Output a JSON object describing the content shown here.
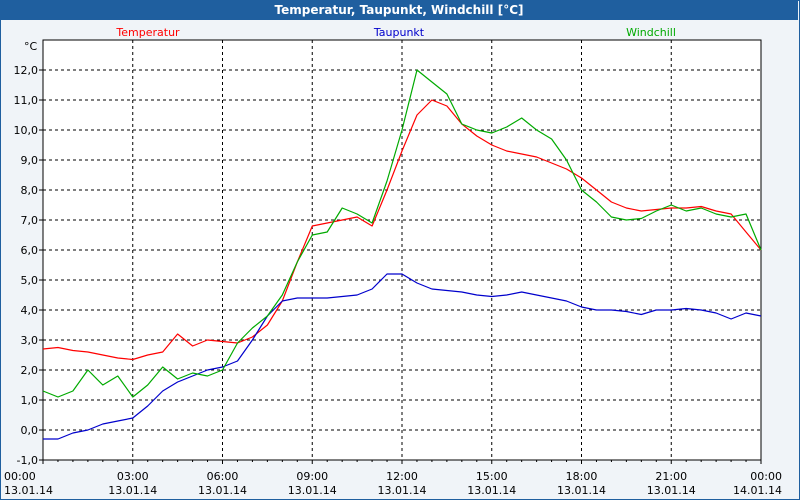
{
  "window": {
    "title": "Temperatur, Taupunkt, Windchill [°C]"
  },
  "colors": {
    "temperatur": "#ff0000",
    "taupunkt": "#0000cc",
    "windchill": "#00aa00",
    "titlebar": "#1f5f9f",
    "grid": "#000000",
    "background": "#ffffff"
  },
  "chart_data": {
    "type": "line",
    "title": "Temperatur, Taupunkt, Windchill [°C]",
    "ylabel": "°C",
    "xlabel": "",
    "xlim": [
      "13.01.14 00:00",
      "14.01.14 00:00"
    ],
    "ylim": [
      -1.0,
      13.0
    ],
    "grid": true,
    "legend_position": "top",
    "yticks": [
      "12,0",
      "11,0",
      "10,0",
      "9,0",
      "8,0",
      "7,0",
      "6,0",
      "5,0",
      "4,0",
      "3,0",
      "2,0",
      "1,0",
      "0,0",
      "-1,0"
    ],
    "xticks": [
      {
        "time": "00:00",
        "date": "13.01.14"
      },
      {
        "time": "03:00",
        "date": "13.01.14"
      },
      {
        "time": "06:00",
        "date": "13.01.14"
      },
      {
        "time": "09:00",
        "date": "13.01.14"
      },
      {
        "time": "12:00",
        "date": "13.01.14"
      },
      {
        "time": "15:00",
        "date": "13.01.14"
      },
      {
        "time": "18:00",
        "date": "13.01.14"
      },
      {
        "time": "21:00",
        "date": "13.01.14"
      },
      {
        "time": "00:00",
        "date": "14.01.14"
      }
    ],
    "x_hours": [
      0,
      0.5,
      1,
      1.5,
      2,
      2.5,
      3,
      3.5,
      4,
      4.5,
      5,
      5.5,
      6,
      6.5,
      7,
      7.5,
      8,
      8.5,
      9,
      9.5,
      10,
      10.5,
      11,
      11.5,
      12,
      12.5,
      13,
      13.5,
      14,
      14.5,
      15,
      15.5,
      16,
      16.5,
      17,
      17.5,
      18,
      18.5,
      19,
      19.5,
      20,
      20.5,
      21,
      21.5,
      22,
      22.5,
      23,
      23.5,
      24
    ],
    "series": [
      {
        "name": "Temperatur",
        "color": "#ff0000",
        "values": [
          2.7,
          2.75,
          2.65,
          2.6,
          2.5,
          2.4,
          2.35,
          2.5,
          2.6,
          3.2,
          2.8,
          3.0,
          2.95,
          2.9,
          3.1,
          3.5,
          4.3,
          5.6,
          6.8,
          6.9,
          7.0,
          7.1,
          6.8,
          8.0,
          9.3,
          10.5,
          11.0,
          10.8,
          10.2,
          9.8,
          9.5,
          9.3,
          9.2,
          9.1,
          8.9,
          8.7,
          8.4,
          8.0,
          7.6,
          7.4,
          7.3,
          7.35,
          7.4,
          7.4,
          7.45,
          7.3,
          7.2,
          6.6,
          6.0
        ]
      },
      {
        "name": "Taupunkt",
        "color": "#0000cc",
        "values": [
          -0.3,
          -0.3,
          -0.1,
          0.0,
          0.2,
          0.3,
          0.4,
          0.8,
          1.3,
          1.6,
          1.8,
          2.0,
          2.1,
          2.3,
          3.0,
          3.8,
          4.3,
          4.4,
          4.4,
          4.4,
          4.45,
          4.5,
          4.7,
          5.2,
          5.2,
          4.9,
          4.7,
          4.65,
          4.6,
          4.5,
          4.45,
          4.5,
          4.6,
          4.5,
          4.4,
          4.3,
          4.1,
          4.0,
          4.0,
          3.95,
          3.85,
          4.0,
          4.0,
          4.05,
          4.0,
          3.9,
          3.7,
          3.9,
          3.8
        ]
      },
      {
        "name": "Windchill",
        "color": "#00aa00",
        "values": [
          1.3,
          1.1,
          1.3,
          2.0,
          1.5,
          1.8,
          1.1,
          1.5,
          2.1,
          1.7,
          1.9,
          1.8,
          2.0,
          2.9,
          3.4,
          3.8,
          4.5,
          5.6,
          6.5,
          6.6,
          7.4,
          7.2,
          6.9,
          8.3,
          10.0,
          12.0,
          11.6,
          11.2,
          10.2,
          10.0,
          9.9,
          10.1,
          10.4,
          10.0,
          9.7,
          9.0,
          8.0,
          7.6,
          7.1,
          7.0,
          7.05,
          7.3,
          7.5,
          7.3,
          7.4,
          7.2,
          7.1,
          7.2,
          6.0
        ]
      }
    ]
  }
}
